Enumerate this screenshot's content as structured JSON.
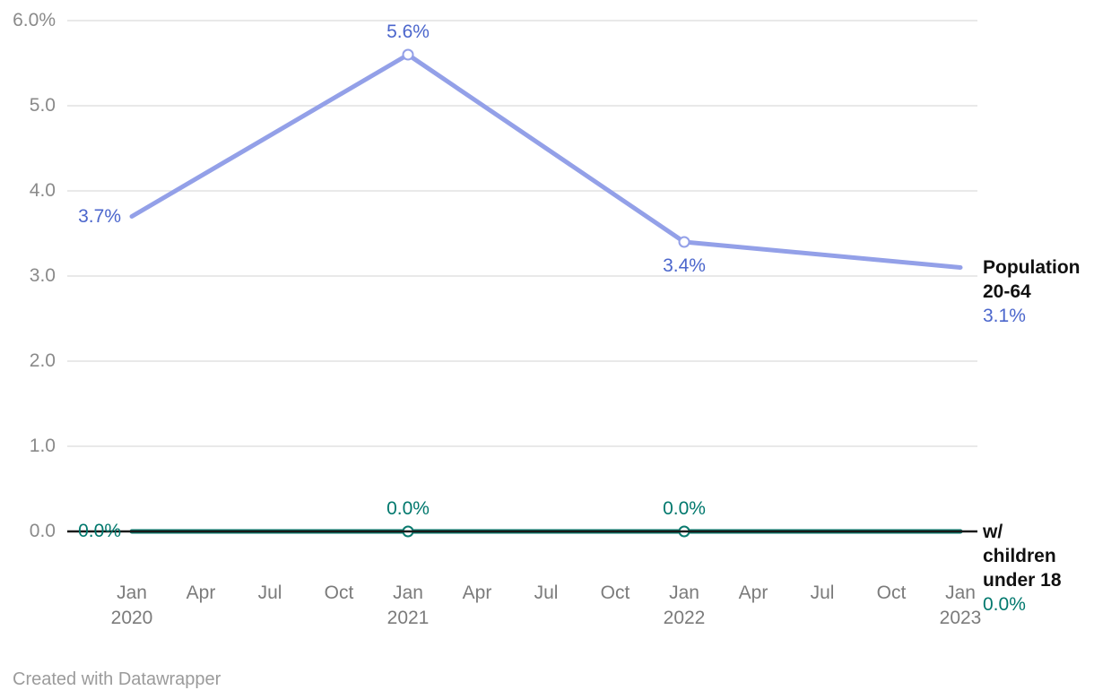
{
  "chart_data": {
    "type": "line",
    "title": "",
    "x_axis": {
      "ticks": [
        {
          "month": "Jan",
          "year": "2020"
        },
        {
          "month": "Apr"
        },
        {
          "month": "Jul"
        },
        {
          "month": "Oct"
        },
        {
          "month": "Jan",
          "year": "2021"
        },
        {
          "month": "Apr"
        },
        {
          "month": "Jul"
        },
        {
          "month": "Oct"
        },
        {
          "month": "Jan",
          "year": "2022"
        },
        {
          "month": "Apr"
        },
        {
          "month": "Jul"
        },
        {
          "month": "Oct"
        },
        {
          "month": "Jan",
          "year": "2023"
        }
      ]
    },
    "y_axis": {
      "range": [
        0,
        6
      ],
      "ticks": [
        {
          "value": 6,
          "label": "6.0%"
        },
        {
          "value": 5,
          "label": "5.0"
        },
        {
          "value": 4,
          "label": "4.0"
        },
        {
          "value": 3,
          "label": "3.0"
        },
        {
          "value": 2,
          "label": "2.0"
        },
        {
          "value": 1,
          "label": "1.0"
        },
        {
          "value": 0,
          "label": "0.0"
        }
      ]
    },
    "series": [
      {
        "name": "Population 20-64",
        "name_lines": [
          "Population",
          "20-64"
        ],
        "line_color": "#93a0e8",
        "label_color": "#4b66cc",
        "end_label": "3.1%",
        "points": [
          {
            "quarter_index": 0,
            "value": 3.7,
            "label": "3.7%",
            "label_pos": "left",
            "marker": false
          },
          {
            "quarter_index": 4,
            "value": 5.6,
            "label": "5.6%",
            "label_pos": "above",
            "marker": true
          },
          {
            "quarter_index": 8,
            "value": 3.4,
            "label": "3.4%",
            "label_pos": "below",
            "marker": true
          },
          {
            "quarter_index": 12,
            "value": 3.1,
            "label": null,
            "label_pos": null,
            "marker": false
          }
        ]
      },
      {
        "name": "w/ children under 18",
        "name_lines": [
          "w/",
          "children",
          "under 18"
        ],
        "line_color": "#0a7a6e",
        "label_color": "#00786d",
        "end_label": "0.0%",
        "points": [
          {
            "quarter_index": 0,
            "value": 0.0,
            "label": "0.0%",
            "label_pos": "left",
            "marker": false
          },
          {
            "quarter_index": 4,
            "value": 0.0,
            "label": "0.0%",
            "label_pos": "above",
            "marker": true
          },
          {
            "quarter_index": 8,
            "value": 0.0,
            "label": "0.0%",
            "label_pos": "above",
            "marker": true
          },
          {
            "quarter_index": 12,
            "value": 0.0,
            "label": null,
            "label_pos": null,
            "marker": false
          }
        ]
      }
    ],
    "colors": {
      "grid": "#e2e2e2",
      "zero_axis": "#1a1a1a",
      "y_tick_text": "#8a8a8a",
      "x_tick_text": "#7b7b7b",
      "series_name_text": "#111111",
      "footer_text": "#9b9b9b",
      "marker_fill": "#ffffff"
    },
    "legend_position": "right-of-line-ends",
    "grid": true,
    "footer": "Created with Datawrapper"
  }
}
